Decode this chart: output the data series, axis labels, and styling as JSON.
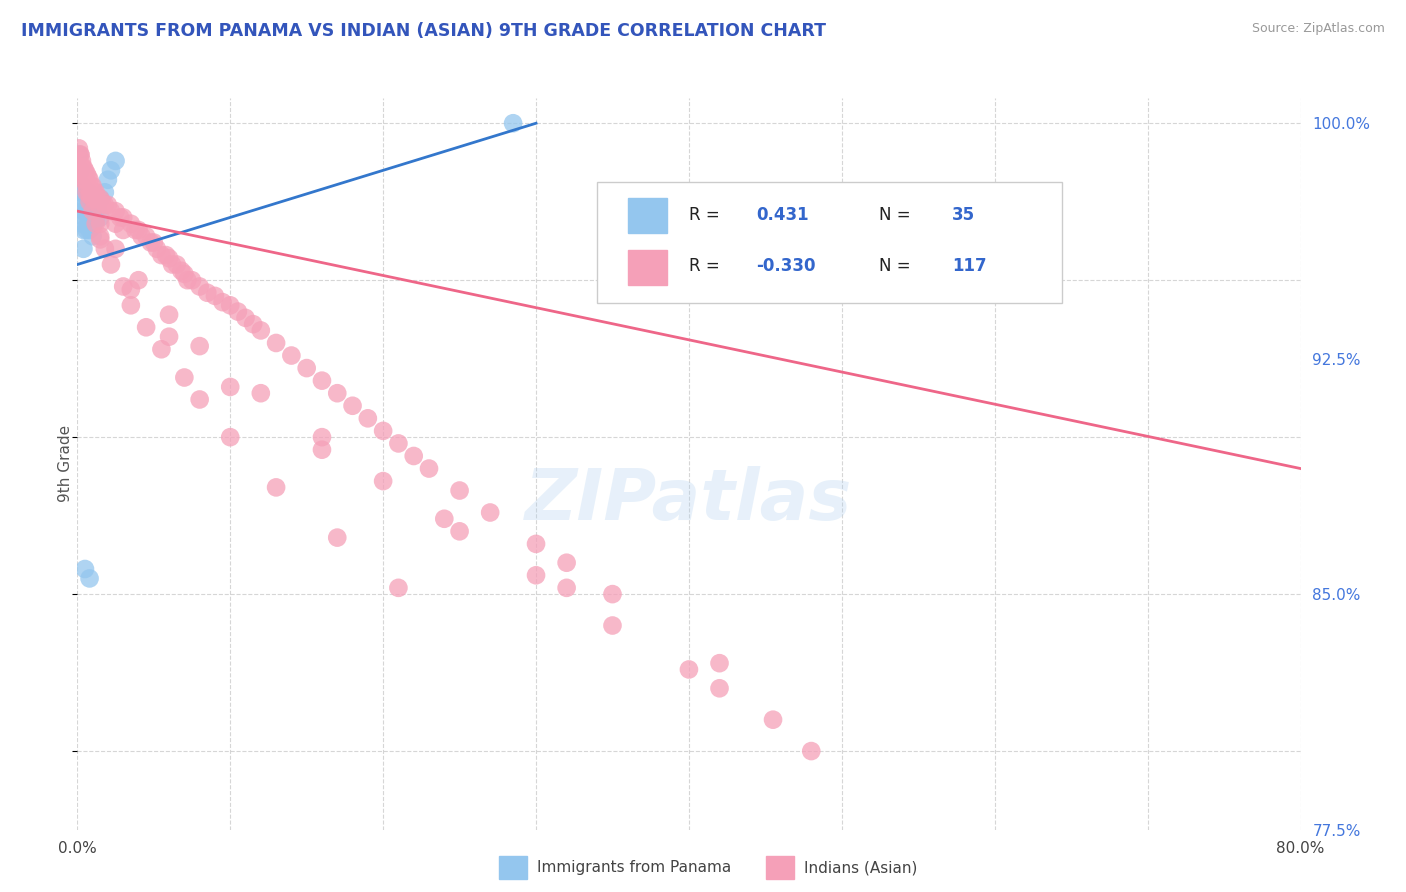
{
  "title": "IMMIGRANTS FROM PANAMA VS INDIAN (ASIAN) 9TH GRADE CORRELATION CHART",
  "source": "Source: ZipAtlas.com",
  "ylabel": "9th Grade",
  "x_min": 0.0,
  "x_max": 0.8,
  "y_min": 0.775,
  "y_max": 1.008,
  "color_blue": "#94C6EE",
  "color_pink": "#F5A0B8",
  "color_title": "#3355BB",
  "color_source": "#999999",
  "trendline_blue": "#3377CC",
  "trendline_pink": "#EE6688",
  "watermark": "ZIPatlas",
  "legend_label1": "Immigrants from Panama",
  "legend_label2": "Indians (Asian)",
  "blue_r": "0.431",
  "blue_n": "35",
  "pink_r": "-0.330",
  "pink_n": "117",
  "blue_x": [
    0.001,
    0.002,
    0.002,
    0.003,
    0.003,
    0.003,
    0.004,
    0.004,
    0.004,
    0.005,
    0.005,
    0.006,
    0.006,
    0.007,
    0.007,
    0.008,
    0.008,
    0.009,
    0.009,
    0.01,
    0.01,
    0.012,
    0.012,
    0.013,
    0.015,
    0.015,
    0.018,
    0.02,
    0.022,
    0.025,
    0.005,
    0.008,
    0.285,
    0.01,
    0.007
  ],
  "blue_y": [
    0.99,
    0.985,
    0.978,
    0.98,
    0.975,
    0.968,
    0.972,
    0.966,
    0.96,
    0.975,
    0.97,
    0.972,
    0.966,
    0.975,
    0.968,
    0.972,
    0.966,
    0.975,
    0.969,
    0.972,
    0.967,
    0.975,
    0.969,
    0.973,
    0.976,
    0.97,
    0.978,
    0.982,
    0.985,
    0.988,
    0.858,
    0.855,
    1.0,
    0.964,
    0.978
  ],
  "pink_x": [
    0.001,
    0.002,
    0.003,
    0.003,
    0.004,
    0.004,
    0.005,
    0.006,
    0.006,
    0.007,
    0.008,
    0.008,
    0.009,
    0.01,
    0.01,
    0.011,
    0.012,
    0.013,
    0.014,
    0.015,
    0.016,
    0.018,
    0.02,
    0.022,
    0.025,
    0.025,
    0.028,
    0.03,
    0.03,
    0.035,
    0.038,
    0.04,
    0.042,
    0.045,
    0.048,
    0.05,
    0.052,
    0.055,
    0.058,
    0.06,
    0.062,
    0.065,
    0.068,
    0.07,
    0.072,
    0.075,
    0.08,
    0.085,
    0.09,
    0.095,
    0.1,
    0.105,
    0.11,
    0.115,
    0.12,
    0.13,
    0.14,
    0.15,
    0.16,
    0.17,
    0.18,
    0.19,
    0.2,
    0.21,
    0.22,
    0.23,
    0.25,
    0.27,
    0.3,
    0.32,
    0.35,
    0.002,
    0.003,
    0.004,
    0.005,
    0.006,
    0.008,
    0.01,
    0.012,
    0.015,
    0.018,
    0.022,
    0.03,
    0.035,
    0.045,
    0.055,
    0.07,
    0.08,
    0.1,
    0.13,
    0.17,
    0.21,
    0.003,
    0.008,
    0.015,
    0.025,
    0.04,
    0.06,
    0.08,
    0.12,
    0.16,
    0.2,
    0.25,
    0.3,
    0.35,
    0.4,
    0.42,
    0.455,
    0.48,
    0.015,
    0.035,
    0.06,
    0.1,
    0.16,
    0.24,
    0.32,
    0.42
  ],
  "pink_y": [
    0.992,
    0.99,
    0.988,
    0.984,
    0.986,
    0.982,
    0.985,
    0.984,
    0.98,
    0.983,
    0.982,
    0.978,
    0.98,
    0.98,
    0.976,
    0.978,
    0.978,
    0.976,
    0.974,
    0.976,
    0.975,
    0.974,
    0.974,
    0.972,
    0.972,
    0.968,
    0.97,
    0.97,
    0.966,
    0.968,
    0.966,
    0.966,
    0.964,
    0.964,
    0.962,
    0.962,
    0.96,
    0.958,
    0.958,
    0.957,
    0.955,
    0.955,
    0.953,
    0.952,
    0.95,
    0.95,
    0.948,
    0.946,
    0.945,
    0.943,
    0.942,
    0.94,
    0.938,
    0.936,
    0.934,
    0.93,
    0.926,
    0.922,
    0.918,
    0.914,
    0.91,
    0.906,
    0.902,
    0.898,
    0.894,
    0.89,
    0.883,
    0.876,
    0.866,
    0.86,
    0.85,
    0.99,
    0.986,
    0.984,
    0.982,
    0.978,
    0.975,
    0.972,
    0.968,
    0.964,
    0.96,
    0.955,
    0.948,
    0.942,
    0.935,
    0.928,
    0.919,
    0.912,
    0.9,
    0.884,
    0.868,
    0.852,
    0.986,
    0.977,
    0.968,
    0.96,
    0.95,
    0.939,
    0.929,
    0.914,
    0.9,
    0.886,
    0.87,
    0.856,
    0.84,
    0.826,
    0.82,
    0.81,
    0.8,
    0.963,
    0.947,
    0.932,
    0.916,
    0.896,
    0.874,
    0.852,
    0.828
  ],
  "blue_trendline_x": [
    0.0,
    0.3
  ],
  "blue_trendline_y": [
    0.955,
    1.0
  ],
  "pink_trendline_x": [
    0.0,
    0.8
  ],
  "pink_trendline_y": [
    0.972,
    0.89
  ]
}
